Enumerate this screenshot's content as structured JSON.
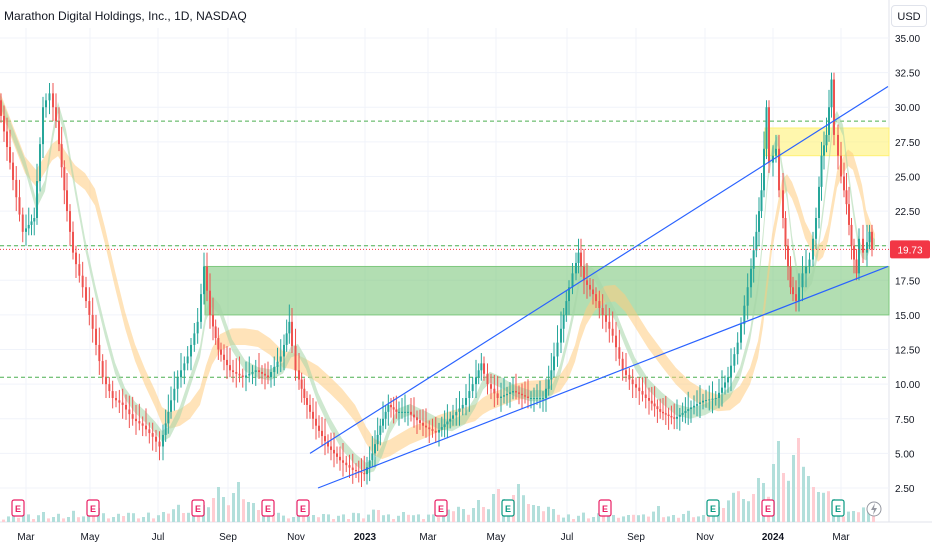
{
  "header": {
    "symbol_title": "Marathon Digital Holdings, Inc., 1D, NASDAQ",
    "currency": "USD"
  },
  "chart_data": {
    "type": "candlestick",
    "x_tick_labels": [
      "Mar",
      "May",
      "Jul",
      "Sep",
      "Nov",
      "2023",
      "Mar",
      "May",
      "Jul",
      "Sep",
      "Nov",
      "2024",
      "Mar"
    ],
    "y_tick_labels": [
      "35.00",
      "32.50",
      "30.00",
      "27.50",
      "25.00",
      "22.50",
      "20.00",
      "17.50",
      "15.00",
      "12.50",
      "10.00",
      "7.50",
      "5.00",
      "2.50"
    ],
    "ylim": [
      0.5,
      37.0
    ],
    "last_price": 19.73,
    "last_price_label": "19.73",
    "price_points": [
      [
        0,
        30.5
      ],
      [
        12,
        26
      ],
      [
        25,
        21
      ],
      [
        36,
        22
      ],
      [
        45,
        30
      ],
      [
        52,
        31
      ],
      [
        58,
        29
      ],
      [
        66,
        24
      ],
      [
        75,
        19.5
      ],
      [
        85,
        17
      ],
      [
        95,
        14
      ],
      [
        105,
        10.5
      ],
      [
        115,
        9
      ],
      [
        125,
        8.5
      ],
      [
        135,
        7.5
      ],
      [
        145,
        7
      ],
      [
        155,
        6.2
      ],
      [
        162,
        5.5
      ],
      [
        170,
        8
      ],
      [
        180,
        10.5
      ],
      [
        190,
        12
      ],
      [
        200,
        14.5
      ],
      [
        206,
        18.5
      ],
      [
        212,
        15
      ],
      [
        220,
        12.5
      ],
      [
        232,
        11
      ],
      [
        245,
        10.5
      ],
      [
        258,
        11
      ],
      [
        270,
        10.5
      ],
      [
        283,
        12
      ],
      [
        291,
        14.5
      ],
      [
        298,
        11
      ],
      [
        306,
        9
      ],
      [
        318,
        7
      ],
      [
        330,
        5.5
      ],
      [
        342,
        4.5
      ],
      [
        355,
        3.8
      ],
      [
        366,
        3.5
      ],
      [
        374,
        5
      ],
      [
        382,
        7
      ],
      [
        390,
        8.5
      ],
      [
        398,
        8
      ],
      [
        410,
        8
      ],
      [
        425,
        7
      ],
      [
        438,
        6.5
      ],
      [
        452,
        7.5
      ],
      [
        465,
        8.5
      ],
      [
        475,
        10
      ],
      [
        483,
        11.5
      ],
      [
        490,
        10
      ],
      [
        500,
        9
      ],
      [
        515,
        9.5
      ],
      [
        530,
        9
      ],
      [
        545,
        9
      ],
      [
        553,
        11
      ],
      [
        560,
        13
      ],
      [
        568,
        16
      ],
      [
        575,
        18
      ],
      [
        580,
        19.5
      ],
      [
        586,
        17.5
      ],
      [
        595,
        16.5
      ],
      [
        605,
        15
      ],
      [
        615,
        13.5
      ],
      [
        625,
        11
      ],
      [
        635,
        10
      ],
      [
        648,
        9
      ],
      [
        662,
        8
      ],
      [
        676,
        7.5
      ],
      [
        690,
        8.2
      ],
      [
        705,
        8.8
      ],
      [
        718,
        9
      ],
      [
        730,
        10.5
      ],
      [
        740,
        13
      ],
      [
        750,
        17
      ],
      [
        758,
        21
      ],
      [
        763,
        24
      ],
      [
        768,
        30
      ],
      [
        772,
        26
      ],
      [
        778,
        27
      ],
      [
        782,
        24
      ],
      [
        787,
        20
      ],
      [
        792,
        17
      ],
      [
        798,
        16
      ],
      [
        805,
        18
      ],
      [
        812,
        19
      ],
      [
        818,
        22
      ],
      [
        823,
        26.5
      ],
      [
        828,
        28
      ],
      [
        833,
        32
      ],
      [
        837,
        28
      ],
      [
        843,
        25
      ],
      [
        848,
        23
      ],
      [
        853,
        20
      ],
      [
        858,
        18
      ],
      [
        862,
        20.5
      ],
      [
        866,
        19.5
      ],
      [
        871,
        21
      ],
      [
        875,
        19.73
      ]
    ],
    "horizontal_levels": [
      29.0,
      20.0,
      10.5
    ],
    "zones": [
      {
        "name": "",
        "color": "#7ec87e",
        "from_x": 205,
        "from_price": 15.0,
        "to_price": 18.5
      },
      {
        "name": "",
        "color": "#fff176",
        "from_x": 765,
        "from_price": 26.5,
        "to_price": 28.5
      }
    ],
    "trend_lines": [
      {
        "x1": 310,
        "p1": 5.0,
        "x2": 888,
        "p2": 31.5
      },
      {
        "x1": 318,
        "p1": 2.5,
        "x2": 888,
        "p2": 18.5
      }
    ],
    "earnings_markers_x": [
      18,
      93,
      198,
      268,
      303,
      441,
      508,
      605,
      713,
      768,
      838
    ],
    "volume_heights": [
      4,
      6,
      5,
      7,
      9,
      6,
      5,
      8,
      10,
      6,
      5,
      7,
      6,
      5,
      12,
      8,
      6,
      9,
      14,
      20,
      8,
      6,
      5,
      7,
      10,
      12,
      8,
      6,
      5,
      9,
      6,
      8,
      10,
      14,
      18,
      22,
      15,
      12,
      20,
      30,
      25,
      18,
      40,
      55,
      35,
      28,
      45,
      60,
      38,
      30,
      25,
      20,
      18,
      22,
      15,
      12
    ]
  },
  "colors": {
    "up": "#26a69a",
    "down": "#ef5350",
    "grid": "#f0f3fa",
    "axis_text": "#131722",
    "last_price_bg": "#f23645",
    "trend_line": "#2962ff",
    "level_line": "#4caf50",
    "earnings_marker": "#e91e63",
    "earnings_marker_alt": "#089981"
  }
}
